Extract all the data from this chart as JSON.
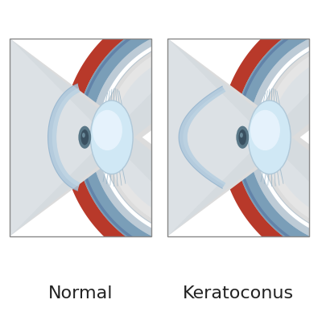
{
  "label_normal": "Normal",
  "label_keratoconus": "Keratoconus",
  "bg_color": "#ffffff",
  "box_edge_color": "#888888",
  "sclera_red": "#b8392a",
  "sclera_red_dark": "#9a2e22",
  "choroid_blue": "#7a9eb8",
  "choroid_blue_dark": "#5a7e9a",
  "white_sclera": "#dcdcdc",
  "white_sclera2": "#efefef",
  "vitreous_color": "#c8dae8",
  "cornea_outer": "#adc8dc",
  "cornea_inner": "#c8dce8",
  "lens_body": "#d0e8f5",
  "lens_highlight": "#eef7ff",
  "lens_edge": "#b0c8d8",
  "pupil_dark": "#3a5060",
  "pupil_mid": "#5a7888",
  "pupil_highlight": "#8ab0c0",
  "zonule_color": "#90b0c5",
  "label_fontsize": 16,
  "label_color": "#222222"
}
